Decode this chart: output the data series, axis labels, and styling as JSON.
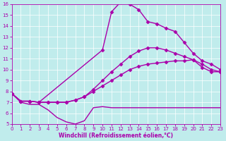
{
  "xlabel": "Windchill (Refroidissement éolien,°C)",
  "xlim": [
    0,
    23
  ],
  "ylim": [
    5,
    16
  ],
  "xticks": [
    0,
    1,
    2,
    3,
    4,
    5,
    6,
    7,
    8,
    9,
    10,
    11,
    12,
    13,
    14,
    15,
    16,
    17,
    18,
    19,
    20,
    21,
    22,
    23
  ],
  "yticks": [
    5,
    6,
    7,
    8,
    9,
    10,
    11,
    12,
    13,
    14,
    15,
    16
  ],
  "bg_color": "#c0ecec",
  "line_color": "#aa00aa",
  "curves": [
    {
      "x": [
        0,
        1,
        2,
        3,
        4,
        5,
        6,
        7,
        8,
        9,
        10,
        11,
        12,
        13,
        14,
        15,
        16,
        17,
        18,
        19,
        20,
        21,
        22,
        23
      ],
      "y": [
        7.8,
        7.0,
        6.8,
        6.8,
        6.3,
        5.6,
        5.2,
        5.0,
        5.3,
        6.5,
        6.6,
        6.5,
        6.5,
        6.5,
        6.5,
        6.5,
        6.5,
        6.5,
        6.5,
        6.5,
        6.5,
        6.5,
        6.5,
        6.5
      ],
      "has_markers": false
    },
    {
      "x": [
        0,
        1,
        2,
        3,
        4,
        5,
        6,
        7,
        8,
        9,
        10,
        11,
        12,
        13,
        14,
        15,
        16,
        17,
        18,
        19,
        20,
        21,
        22,
        23
      ],
      "y": [
        7.8,
        7.1,
        7.1,
        7.0,
        7.0,
        7.0,
        7.0,
        7.2,
        7.5,
        8.0,
        8.5,
        9.0,
        9.5,
        10.0,
        10.3,
        10.5,
        10.6,
        10.7,
        10.8,
        10.8,
        10.9,
        10.2,
        9.8,
        9.8
      ],
      "has_markers": true
    },
    {
      "x": [
        0,
        1,
        2,
        3,
        4,
        5,
        6,
        7,
        8,
        9,
        10,
        11,
        12,
        13,
        14,
        15,
        16,
        17,
        18,
        19,
        20,
        21,
        22,
        23
      ],
      "y": [
        7.8,
        7.1,
        7.1,
        7.0,
        7.0,
        7.0,
        7.0,
        7.2,
        7.5,
        8.2,
        9.0,
        9.8,
        10.5,
        11.2,
        11.7,
        12.0,
        12.0,
        11.8,
        11.5,
        11.2,
        10.9,
        10.5,
        10.0,
        9.8
      ],
      "has_markers": true
    },
    {
      "x": [
        0,
        1,
        2,
        3,
        10,
        11,
        12,
        13,
        14,
        15,
        16,
        17,
        18,
        19,
        20,
        21,
        22,
        23
      ],
      "y": [
        7.8,
        7.1,
        7.1,
        7.0,
        11.8,
        15.3,
        16.2,
        16.0,
        15.5,
        14.4,
        14.2,
        13.8,
        13.5,
        12.5,
        11.5,
        10.8,
        10.5,
        10.0
      ],
      "has_markers": true
    }
  ],
  "marker": "D",
  "markersize": 2.5,
  "linewidth": 1.0,
  "tick_fontsize": 5,
  "xlabel_fontsize": 5.5
}
